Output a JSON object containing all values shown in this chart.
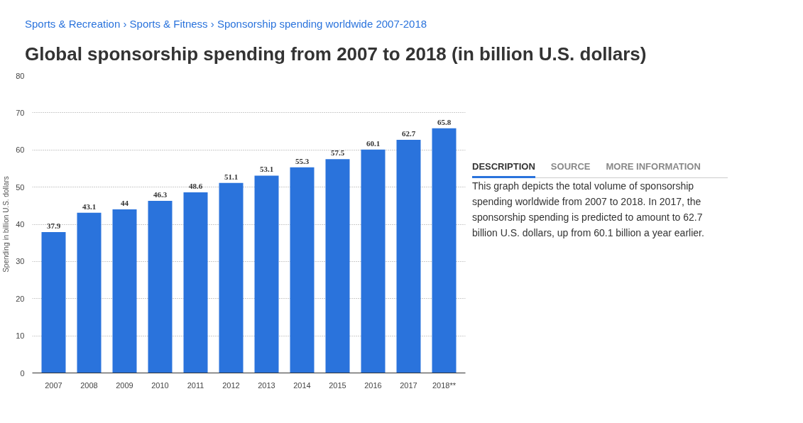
{
  "chart_data": {
    "type": "bar",
    "title": "Global sponsorship spending from 2007 to 2018 (in billion U.S. dollars)",
    "ylabel": "Spending in billion U.S. dollars",
    "categories": [
      "2007",
      "2008",
      "2009",
      "2010",
      "2011",
      "2012",
      "2013",
      "2014",
      "2015",
      "2016",
      "2017",
      "2018**"
    ],
    "values": [
      37.9,
      43.1,
      44,
      46.3,
      48.6,
      51.1,
      53.1,
      55.3,
      57.5,
      60.1,
      62.7,
      65.8
    ],
    "color": "#2a73dc",
    "ylim": [
      0,
      80
    ],
    "yticks": [
      0,
      10,
      20,
      30,
      40,
      50,
      60,
      70,
      80
    ],
    "grid": "y",
    "data_labels": true,
    "annotations": [
      "Sports & Recreation › Sports & Fitness › Sponsorship spending worldwide 2007-2018",
      "DESCRIPTION",
      "SOURCE",
      "MORE INFORMATION",
      "This graph depicts the total volume of sponsorship spending worldwide from 2007 to 2018. In 2017, the sponsorship spending is predicted to amount to 62.7 billion U.S. dollars, up from 60.1 billion a year earlier."
    ]
  }
}
